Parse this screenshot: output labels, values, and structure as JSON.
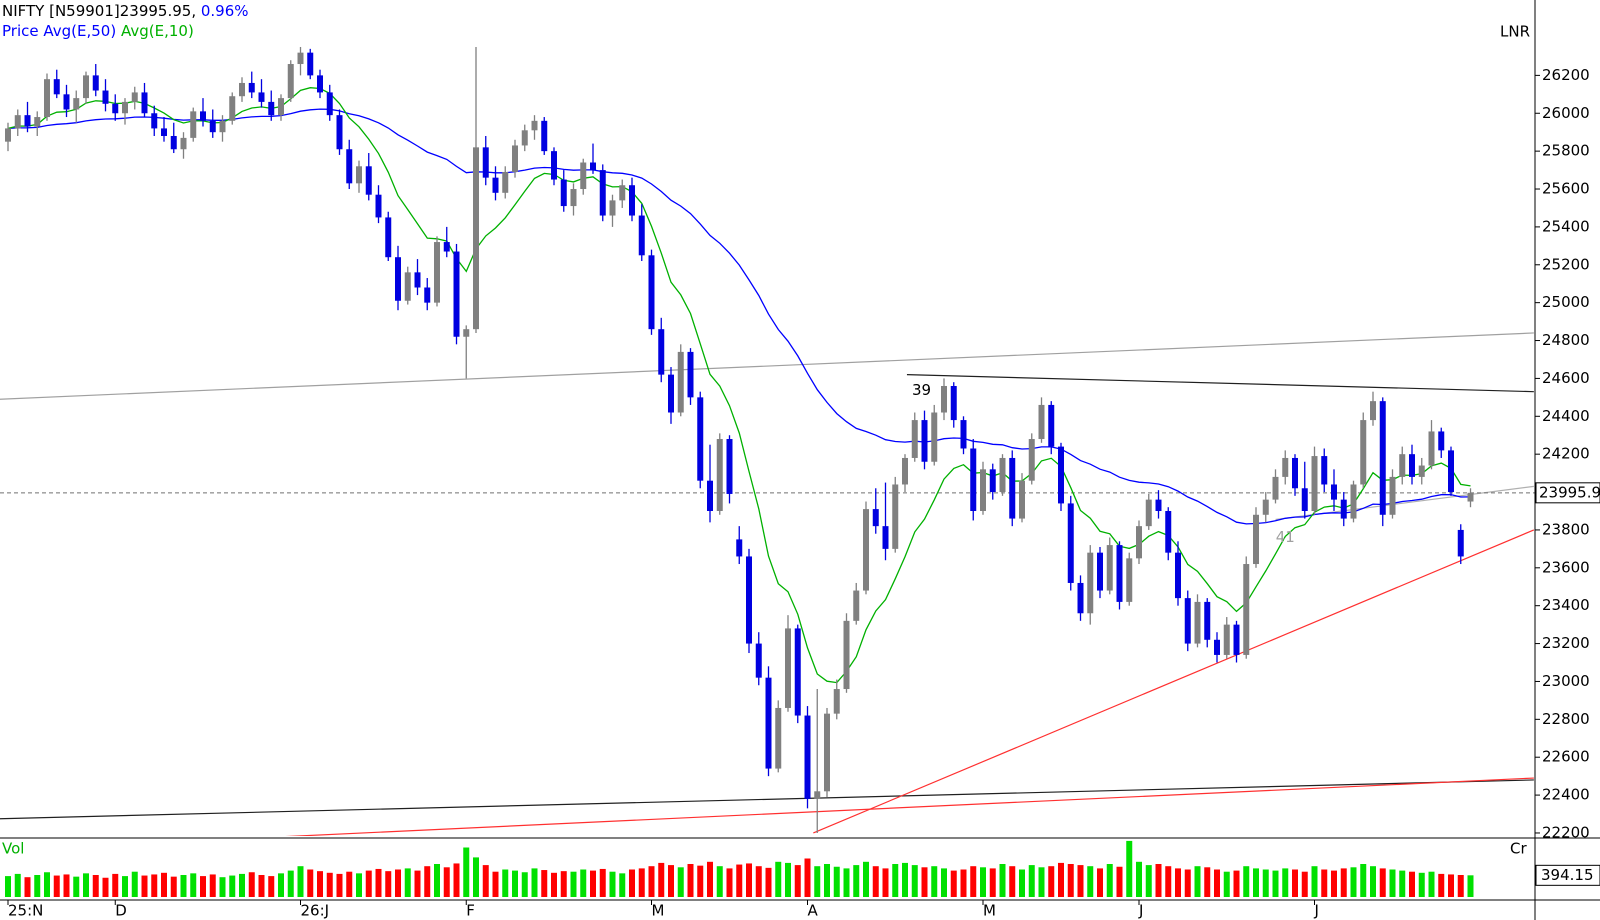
{
  "chart_data": {
    "type": "candlestick",
    "title": "NIFTY [N59901]23995.95,",
    "change": "0.96%",
    "series_label": "Price",
    "averages": [
      {
        "name": "Avg(E,50)",
        "color": "#0000ff"
      },
      {
        "name": "Avg(E,10)",
        "color": "#00b000"
      }
    ],
    "scale_label": "LNR",
    "volume_label": "Vol",
    "volume_scale_label": "Cr",
    "up_color": "#808080",
    "down_color": "#0000e0",
    "volume_colors": [
      "#00e000",
      "#ff0000"
    ],
    "ylim": [
      22184,
      26598
    ],
    "yticks": [
      22200,
      22400,
      22600,
      22800,
      23000,
      23200,
      23400,
      23600,
      23800,
      24000,
      24200,
      24400,
      24600,
      24800,
      25000,
      25200,
      25400,
      25600,
      25800,
      26000,
      26200
    ],
    "volume_ylim": [
      0,
      1000
    ],
    "categories": [
      "25:N",
      null,
      null,
      null,
      null,
      null,
      null,
      null,
      null,
      null,
      null,
      "D",
      null,
      null,
      null,
      null,
      null,
      null,
      null,
      null,
      null,
      null,
      null,
      null,
      null,
      null,
      null,
      null,
      null,
      null,
      "26:J",
      null,
      null,
      null,
      null,
      null,
      null,
      null,
      null,
      null,
      null,
      null,
      null,
      null,
      null,
      null,
      null,
      "F",
      null,
      null,
      null,
      null,
      null,
      null,
      null,
      null,
      null,
      null,
      null,
      null,
      null,
      null,
      null,
      null,
      null,
      null,
      "M",
      null,
      null,
      null,
      null,
      null,
      null,
      null,
      null,
      null,
      null,
      null,
      null,
      null,
      null,
      null,
      "A",
      null,
      null,
      null,
      null,
      null,
      null,
      null,
      null,
      null,
      null,
      null,
      null,
      null,
      null,
      null,
      null,
      null,
      "M",
      null,
      null,
      null,
      null,
      null,
      null,
      null,
      null,
      null,
      null,
      null,
      null,
      null,
      null,
      null,
      "J",
      null,
      null,
      null,
      null,
      null,
      null,
      null,
      null,
      null,
      null,
      null,
      null,
      null,
      null,
      null,
      null,
      null,
      "J",
      null,
      null,
      null,
      null,
      null,
      null,
      null,
      null,
      null,
      null,
      null,
      null,
      null,
      null,
      null,
      null
    ],
    "candles": [
      [
        25850,
        25950,
        25800,
        25920
      ],
      [
        25920,
        26020,
        25880,
        25990
      ],
      [
        25990,
        26060,
        25900,
        25930
      ],
      [
        25930,
        26010,
        25880,
        25980
      ],
      [
        25980,
        26210,
        25960,
        26180
      ],
      [
        26180,
        26230,
        26080,
        26100
      ],
      [
        26100,
        26150,
        25980,
        26020
      ],
      [
        26020,
        26120,
        25950,
        26080
      ],
      [
        26080,
        26220,
        26050,
        26200
      ],
      [
        26200,
        26260,
        26090,
        26120
      ],
      [
        26120,
        26180,
        26010,
        26050
      ],
      [
        26050,
        26100,
        25960,
        26000
      ],
      [
        26000,
        26080,
        25940,
        26060
      ],
      [
        26060,
        26140,
        26020,
        26110
      ],
      [
        26110,
        26160,
        25980,
        26000
      ],
      [
        26000,
        26040,
        25880,
        25920
      ],
      [
        25920,
        25980,
        25850,
        25880
      ],
      [
        25880,
        25950,
        25790,
        25810
      ],
      [
        25810,
        25900,
        25760,
        25870
      ],
      [
        25870,
        26030,
        25850,
        26010
      ],
      [
        26010,
        26080,
        25930,
        25960
      ],
      [
        25960,
        26020,
        25870,
        25900
      ],
      [
        25900,
        25990,
        25850,
        25960
      ],
      [
        25960,
        26110,
        25940,
        26090
      ],
      [
        26090,
        26190,
        26060,
        26160
      ],
      [
        26160,
        26220,
        26080,
        26110
      ],
      [
        26110,
        26180,
        26030,
        26060
      ],
      [
        26060,
        26120,
        25960,
        25990
      ],
      [
        25990,
        26100,
        25960,
        26080
      ],
      [
        26080,
        26280,
        26060,
        26260
      ],
      [
        26260,
        26350,
        26200,
        26320
      ],
      [
        26320,
        26340,
        26180,
        26200
      ],
      [
        26200,
        26230,
        26080,
        26110
      ],
      [
        26110,
        26150,
        25960,
        25990
      ],
      [
        25990,
        26020,
        25780,
        25810
      ],
      [
        25810,
        25860,
        25600,
        25630
      ],
      [
        25630,
        25750,
        25580,
        25720
      ],
      [
        25720,
        25790,
        25540,
        25570
      ],
      [
        25570,
        25620,
        25420,
        25450
      ],
      [
        25450,
        25480,
        25220,
        25240
      ],
      [
        25240,
        25300,
        24960,
        25010
      ],
      [
        25010,
        25190,
        24990,
        25160
      ],
      [
        25160,
        25230,
        25040,
        25080
      ],
      [
        25080,
        25130,
        24960,
        25000
      ],
      [
        25000,
        25350,
        24980,
        25320
      ],
      [
        25320,
        25400,
        25240,
        25270
      ],
      [
        25270,
        25310,
        24780,
        24820
      ],
      [
        24820,
        24880,
        24600,
        24860
      ],
      [
        24860,
        26350,
        24840,
        25820
      ],
      [
        25820,
        25880,
        25620,
        25660
      ],
      [
        25660,
        25720,
        25540,
        25580
      ],
      [
        25580,
        25720,
        25550,
        25690
      ],
      [
        25690,
        25860,
        25660,
        25830
      ],
      [
        25830,
        25940,
        25800,
        25910
      ],
      [
        25910,
        25990,
        25860,
        25960
      ],
      [
        25960,
        25980,
        25780,
        25800
      ],
      [
        25800,
        25820,
        25620,
        25650
      ],
      [
        25650,
        25700,
        25480,
        25510
      ],
      [
        25510,
        25630,
        25460,
        25600
      ],
      [
        25600,
        25760,
        25570,
        25740
      ],
      [
        25740,
        25840,
        25680,
        25700
      ],
      [
        25700,
        25730,
        25430,
        25460
      ],
      [
        25460,
        25570,
        25400,
        25540
      ],
      [
        25540,
        25650,
        25500,
        25620
      ],
      [
        25620,
        25660,
        25430,
        25460
      ],
      [
        25460,
        25520,
        25220,
        25250
      ],
      [
        25250,
        25280,
        24830,
        24860
      ],
      [
        24860,
        24920,
        24580,
        24620
      ],
      [
        24620,
        24660,
        24360,
        24420
      ],
      [
        24420,
        24780,
        24400,
        24740
      ],
      [
        24740,
        24760,
        24460,
        24500
      ],
      [
        24500,
        24530,
        24020,
        24060
      ],
      [
        24060,
        24250,
        23840,
        23900
      ],
      [
        23900,
        24310,
        23880,
        24280
      ],
      [
        24280,
        24300,
        23940,
        23990
      ],
      [
        23750,
        23820,
        23620,
        23660
      ],
      [
        23660,
        23700,
        23150,
        23200
      ],
      [
        23200,
        23260,
        22980,
        23020
      ],
      [
        23020,
        23080,
        22500,
        22540
      ],
      [
        22540,
        22900,
        22520,
        22860
      ],
      [
        22860,
        23350,
        22840,
        23280
      ],
      [
        23280,
        23300,
        22780,
        22820
      ],
      [
        22820,
        22870,
        22330,
        22380
      ],
      [
        22380,
        22960,
        22200,
        22420
      ],
      [
        22420,
        22860,
        22390,
        22830
      ],
      [
        22830,
        23010,
        22800,
        22960
      ],
      [
        22960,
        23360,
        22940,
        23320
      ],
      [
        23320,
        23520,
        23300,
        23480
      ],
      [
        23480,
        23950,
        23460,
        23910
      ],
      [
        23910,
        24020,
        23780,
        23820
      ],
      [
        23820,
        24050,
        23640,
        23700
      ],
      [
        23700,
        24080,
        23680,
        24040
      ],
      [
        24040,
        24200,
        24000,
        24180
      ],
      [
        24180,
        24420,
        24160,
        24380
      ],
      [
        24380,
        24430,
        24120,
        24160
      ],
      [
        24160,
        24460,
        24140,
        24420
      ],
      [
        24420,
        24600,
        24380,
        24560
      ],
      [
        24560,
        24580,
        24340,
        24380
      ],
      [
        24380,
        24400,
        24200,
        24230
      ],
      [
        24230,
        24280,
        23850,
        23900
      ],
      [
        23900,
        24160,
        23880,
        24120
      ],
      [
        24120,
        24150,
        23960,
        24000
      ],
      [
        24000,
        24200,
        23980,
        24180
      ],
      [
        24180,
        24220,
        23820,
        23860
      ],
      [
        23860,
        24100,
        23840,
        24060
      ],
      [
        24060,
        24310,
        24040,
        24280
      ],
      [
        24280,
        24500,
        24260,
        24460
      ],
      [
        24460,
        24480,
        24200,
        24240
      ],
      [
        24240,
        24260,
        23900,
        23940
      ],
      [
        23940,
        23980,
        23480,
        23520
      ],
      [
        23520,
        23560,
        23320,
        23360
      ],
      [
        23360,
        23720,
        23300,
        23680
      ],
      [
        23680,
        23710,
        23440,
        23480
      ],
      [
        23480,
        23760,
        23460,
        23720
      ],
      [
        23720,
        23740,
        23380,
        23420
      ],
      [
        23420,
        23680,
        23400,
        23650
      ],
      [
        23650,
        23850,
        23620,
        23820
      ],
      [
        23820,
        23990,
        23800,
        23960
      ],
      [
        23960,
        24010,
        23860,
        23900
      ],
      [
        23900,
        23920,
        23640,
        23680
      ],
      [
        23680,
        23740,
        23400,
        23440
      ],
      [
        23440,
        23480,
        23160,
        23200
      ],
      [
        23200,
        23460,
        23180,
        23420
      ],
      [
        23420,
        23440,
        23180,
        23220
      ],
      [
        23220,
        23260,
        23100,
        23140
      ],
      [
        23140,
        23340,
        23120,
        23300
      ],
      [
        23300,
        23320,
        23100,
        23140
      ],
      [
        23140,
        23660,
        23120,
        23620
      ],
      [
        23620,
        23920,
        23600,
        23880
      ],
      [
        23880,
        24000,
        23840,
        23960
      ],
      [
        23960,
        24120,
        23940,
        24080
      ],
      [
        24080,
        24220,
        24040,
        24180
      ],
      [
        24180,
        24200,
        23980,
        24020
      ],
      [
        24020,
        24160,
        23860,
        23900
      ],
      [
        23900,
        24240,
        23880,
        24190
      ],
      [
        24190,
        24230,
        24000,
        24040
      ],
      [
        24040,
        24120,
        23900,
        23960
      ],
      [
        23960,
        24000,
        23820,
        23860
      ],
      [
        23860,
        24060,
        23840,
        24040
      ],
      [
        24040,
        24420,
        24020,
        24380
      ],
      [
        24380,
        24530,
        24350,
        24480
      ],
      [
        24480,
        24500,
        23820,
        23880
      ],
      [
        23880,
        24120,
        23860,
        24080
      ],
      [
        24080,
        24240,
        24040,
        24200
      ],
      [
        24200,
        24250,
        24040,
        24080
      ],
      [
        24080,
        24180,
        24040,
        24140
      ],
      [
        24140,
        24380,
        24120,
        24320
      ],
      [
        24320,
        24340,
        24180,
        24220
      ],
      [
        24220,
        24240,
        23980,
        24000
      ],
      [
        23800,
        23830,
        23620,
        23660
      ],
      [
        23950,
        24020,
        23920,
        23995.95
      ]
    ],
    "volumes": [
      380,
      420,
      360,
      400,
      450,
      390,
      410,
      370,
      430,
      400,
      350,
      420,
      380,
      460,
      390,
      410,
      440,
      370,
      400,
      430,
      380,
      410,
      360,
      390,
      420,
      450,
      400,
      380,
      430,
      480,
      560,
      500,
      470,
      440,
      420,
      460,
      430,
      480,
      510,
      470,
      500,
      520,
      480,
      560,
      600,
      540,
      610,
      900,
      720,
      580,
      460,
      500,
      480,
      450,
      520,
      490,
      440,
      470,
      460,
      500,
      480,
      510,
      460,
      430,
      500,
      520,
      560,
      620,
      580,
      540,
      600,
      570,
      640,
      560,
      520,
      590,
      610,
      560,
      530,
      640,
      620,
      580,
      700,
      560,
      600,
      550,
      520,
      580,
      640,
      560,
      520,
      600,
      620,
      580,
      540,
      560,
      520,
      480,
      500,
      560,
      540,
      520,
      600,
      560,
      500,
      580,
      540,
      560,
      620,
      600,
      580,
      560,
      520,
      600,
      550,
      1020,
      640,
      580,
      600,
      560,
      520,
      500,
      560,
      540,
      500,
      460,
      480,
      560,
      520,
      500,
      480,
      520,
      500,
      460,
      560,
      500,
      480,
      520,
      540,
      600,
      560,
      520,
      500,
      480,
      460,
      440,
      460,
      420,
      410,
      400,
      394.15
    ],
    "trendlines": [
      {
        "color": "#a0a0a0",
        "x": [
          -0.9,
          156.5
        ],
        "y": [
          24490,
          24840
        ]
      },
      {
        "color": "#202020",
        "x": [
          92.2,
          156.5
        ],
        "y": [
          24620,
          24530
        ]
      },
      {
        "color": "#202020",
        "x": [
          -0.9,
          156.5
        ],
        "y": [
          22275,
          22480
        ]
      },
      {
        "color": "#ff3030",
        "x": [
          -0.9,
          156.5
        ],
        "y": [
          22110,
          22490
        ]
      },
      {
        "color": "#ff3030",
        "x": [
          82.6,
          156.5
        ],
        "y": [
          22200,
          23800
        ]
      },
      {
        "color": "#b0b0b0",
        "x": [
          130,
          156.5
        ],
        "y": [
          23855,
          24030
        ]
      }
    ],
    "annotations": [
      {
        "text": "39",
        "x": 93.7,
        "y": 24537,
        "color": "#000000"
      },
      {
        "text": "41",
        "x": 131,
        "y": 23761,
        "color": "#a0a0a0"
      }
    ]
  }
}
